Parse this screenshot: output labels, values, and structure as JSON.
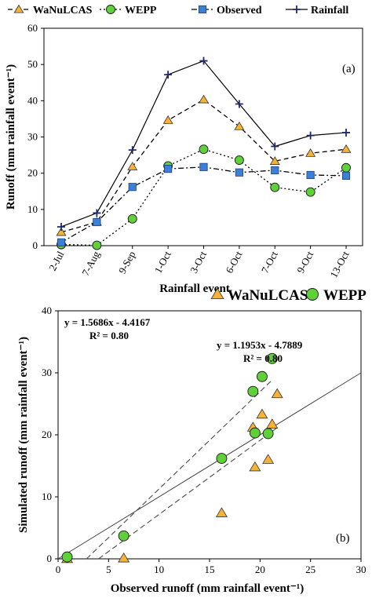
{
  "chart_data": [
    {
      "type": "line",
      "panel_label": "(a)",
      "categories": [
        "2-Jul",
        "7-Aug",
        "9-Sep",
        "1-Oct",
        "3-Oct",
        "6-Oct",
        "7-Oct",
        "9-Oct",
        "13-Oct"
      ],
      "xlabel": "Rainfall event",
      "ylabel": "Runoff (mm rainfall event⁻¹)",
      "ylim": [
        0,
        60
      ],
      "yticks": [
        0,
        10,
        20,
        30,
        40,
        50,
        60
      ],
      "legend_position": "top",
      "series": [
        {
          "name": "WaNuLCAS",
          "marker": "triangle",
          "color": "#f5b335",
          "line": "dashed",
          "values": [
            3.7,
            6.5,
            21.8,
            34.6,
            40.3,
            32.9,
            23.3,
            25.5,
            26.6
          ]
        },
        {
          "name": "WEPP",
          "marker": "circle",
          "color": "#5fd03a",
          "line": "dotted",
          "values": [
            0.3,
            0.1,
            7.4,
            22.0,
            26.6,
            23.6,
            16.1,
            14.8,
            21.5
          ]
        },
        {
          "name": "Observed",
          "marker": "square",
          "color": "#3b7fd6",
          "line": "dash-dot",
          "values": [
            0.9,
            6.5,
            16.2,
            21.2,
            21.7,
            20.2,
            20.8,
            19.5,
            19.3
          ]
        },
        {
          "name": "Rainfall",
          "marker": "plus",
          "color": "#1f2a6b",
          "line": "solid",
          "values": [
            5.2,
            9.0,
            26.4,
            47.2,
            51.0,
            39.1,
            27.4,
            30.4,
            31.2
          ]
        }
      ]
    },
    {
      "type": "scatter",
      "panel_label": "(b)",
      "xlabel": "Observed runoff (mm rainfall event⁻¹)",
      "ylabel": "Simulated runoff (mm rainfall event⁻¹)",
      "xlim": [
        0,
        30
      ],
      "ylim": [
        0,
        40
      ],
      "xticks": [
        0,
        5,
        10,
        15,
        20,
        25,
        30
      ],
      "yticks": [
        0,
        10,
        20,
        30,
        40
      ],
      "legend_position": "top",
      "one_to_one_line": true,
      "series": [
        {
          "name": "WaNuLCAS",
          "marker": "triangle",
          "color": "#f5b335",
          "points": [
            [
              0.9,
              0.0
            ],
            [
              6.5,
              0.1
            ],
            [
              16.2,
              7.4
            ],
            [
              19.3,
              21.2
            ],
            [
              19.5,
              14.8
            ],
            [
              20.2,
              23.3
            ],
            [
              20.8,
              16.0
            ],
            [
              21.2,
              21.7
            ],
            [
              21.7,
              26.6
            ]
          ],
          "fit": {
            "slope": 1.1953,
            "intercept": -4.7889,
            "equation": "y = 1.1953x - 4.7889",
            "r2": "R² = 0.80"
          }
        },
        {
          "name": "WEPP",
          "marker": "circle",
          "color": "#5fd03a",
          "points": [
            [
              0.9,
              0.3
            ],
            [
              6.5,
              3.7
            ],
            [
              16.2,
              16.2
            ],
            [
              19.3,
              27.0
            ],
            [
              19.5,
              20.3
            ],
            [
              20.2,
              29.4
            ],
            [
              20.8,
              20.2
            ],
            [
              21.2,
              32.3
            ]
          ],
          "fit": {
            "slope": 1.5686,
            "intercept": -4.4167,
            "equation": "y = 1.5686x - 4.4167",
            "r2": "R² = 0.80"
          }
        }
      ]
    }
  ]
}
